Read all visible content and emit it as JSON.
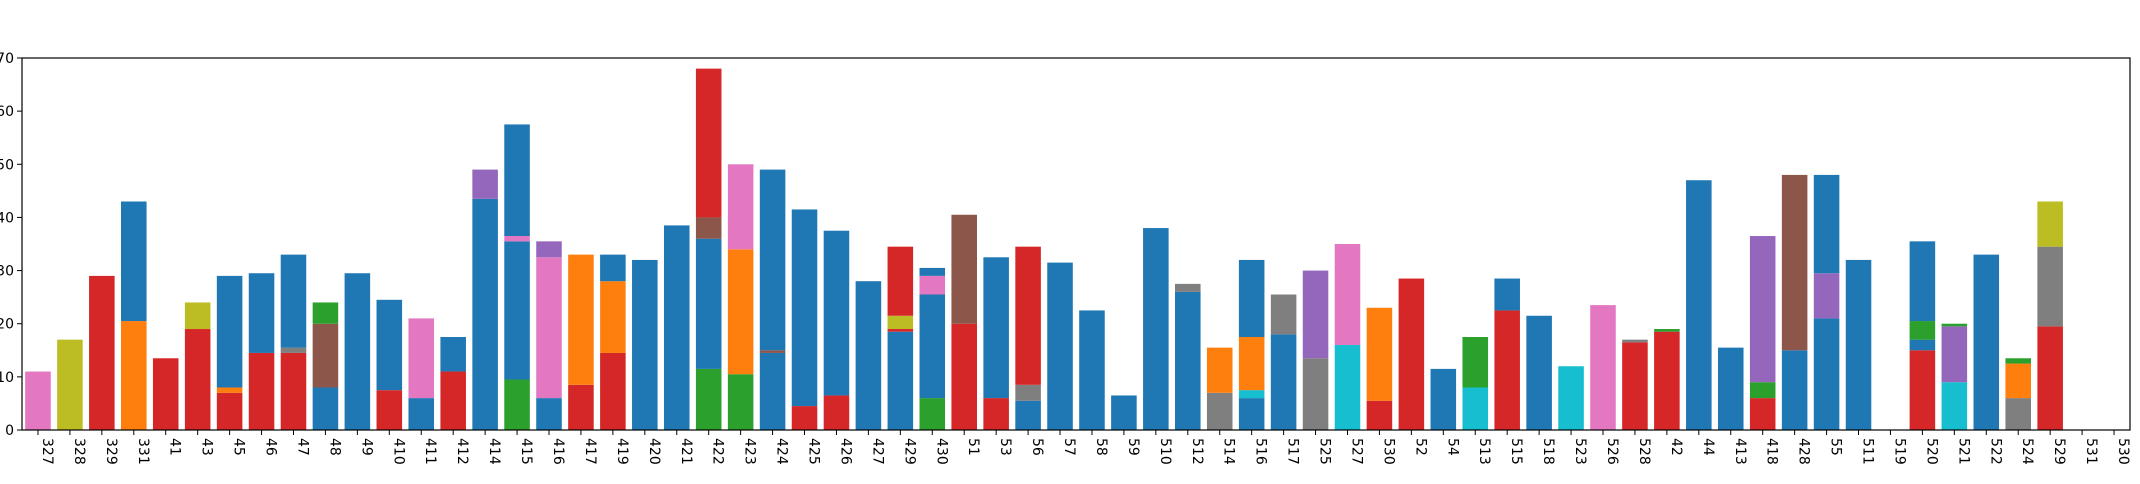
{
  "chart_data": {
    "type": "bar",
    "stacked": true,
    "title": "",
    "xlabel": "",
    "ylabel": "",
    "ylim": [
      0,
      70
    ],
    "ytick_values": [
      0,
      10,
      20,
      30,
      40,
      50,
      60,
      70
    ],
    "ytick_labels": [
      "0",
      "10",
      "20",
      "30",
      "40",
      "50",
      "60",
      "70"
    ],
    "ytick_labels_note": "leading digits of y tick labels are cropped off in the screenshot; only the trailing 0 is visible",
    "grid": false,
    "legend": "none",
    "colors": [
      "#1f77b4",
      "#ff7f0e",
      "#2ca02c",
      "#d62728",
      "#9467bd",
      "#8c564b",
      "#e377c2",
      "#7f7f7f",
      "#bcbd22",
      "#17becf"
    ],
    "categories": [
      "327",
      "328",
      "329",
      "331",
      "41",
      "43",
      "45",
      "46",
      "47",
      "48",
      "49",
      "410",
      "411",
      "412",
      "414",
      "415",
      "416",
      "417",
      "419",
      "420",
      "421",
      "422",
      "423",
      "424",
      "425",
      "426",
      "427",
      "429",
      "430",
      "51",
      "53",
      "56",
      "57",
      "58",
      "59",
      "510",
      "512",
      "514",
      "516",
      "517",
      "525",
      "527",
      "530",
      "52",
      "54",
      "513",
      "515",
      "518",
      "523",
      "526",
      "528",
      "42",
      "44",
      "413",
      "418",
      "428",
      "55",
      "511",
      "519",
      "520",
      "521",
      "522",
      "524",
      "529",
      "531",
      "530"
    ],
    "bars": [
      [
        [
          6,
          11
        ]
      ],
      [
        [
          8,
          17
        ]
      ],
      [
        [
          3,
          29
        ]
      ],
      [
        [
          1,
          20.5
        ],
        [
          0,
          22.5
        ]
      ],
      [
        [
          3,
          13.5
        ]
      ],
      [
        [
          3,
          19
        ],
        [
          8,
          5
        ]
      ],
      [
        [
          3,
          7
        ],
        [
          1,
          1
        ],
        [
          0,
          21
        ]
      ],
      [
        [
          3,
          14.5
        ],
        [
          0,
          15
        ]
      ],
      [
        [
          3,
          14.5
        ],
        [
          7,
          1
        ],
        [
          0,
          17.5
        ]
      ],
      [
        [
          0,
          8
        ],
        [
          5,
          12
        ],
        [
          2,
          4
        ]
      ],
      [
        [
          0,
          29.5
        ]
      ],
      [
        [
          3,
          7.5
        ],
        [
          0,
          17
        ]
      ],
      [
        [
          0,
          6
        ],
        [
          6,
          15
        ]
      ],
      [
        [
          3,
          11
        ],
        [
          0,
          6.5
        ]
      ],
      [
        [
          0,
          43.5
        ],
        [
          4,
          5.5
        ]
      ],
      [
        [
          2,
          9.5
        ],
        [
          0,
          26
        ],
        [
          6,
          1
        ],
        [
          0,
          21
        ]
      ],
      [
        [
          0,
          6
        ],
        [
          6,
          26.5
        ],
        [
          4,
          3
        ]
      ],
      [
        [
          3,
          8.5
        ],
        [
          1,
          24.5
        ]
      ],
      [
        [
          3,
          14.5
        ],
        [
          1,
          13.5
        ],
        [
          0,
          5
        ]
      ],
      [
        [
          0,
          32
        ]
      ],
      [
        [
          0,
          38.5
        ]
      ],
      [
        [
          2,
          11.5
        ],
        [
          0,
          24.5
        ],
        [
          5,
          4
        ],
        [
          3,
          28
        ]
      ],
      [
        [
          2,
          10.5
        ],
        [
          1,
          23.5
        ],
        [
          6,
          16
        ]
      ],
      [
        [
          0,
          14.5
        ],
        [
          5,
          0.5
        ],
        [
          0,
          34
        ]
      ],
      [
        [
          3,
          4.5
        ],
        [
          0,
          37
        ]
      ],
      [
        [
          3,
          6.5
        ],
        [
          0,
          31
        ]
      ],
      [
        [
          0,
          28
        ]
      ],
      [
        [
          0,
          18.5
        ],
        [
          3,
          0.5
        ],
        [
          8,
          2.5
        ],
        [
          3,
          13
        ]
      ],
      [
        [
          2,
          6
        ],
        [
          0,
          19.5
        ],
        [
          6,
          3.5
        ],
        [
          0,
          1.5
        ]
      ],
      [
        [
          3,
          20
        ],
        [
          5,
          20.5
        ]
      ],
      [
        [
          3,
          6
        ],
        [
          0,
          26.5
        ]
      ],
      [
        [
          0,
          5.5
        ],
        [
          7,
          3
        ],
        [
          3,
          26
        ]
      ],
      [
        [
          0,
          31.5
        ]
      ],
      [
        [
          0,
          22.5
        ]
      ],
      [
        [
          0,
          6.5
        ]
      ],
      [
        [
          0,
          38
        ]
      ],
      [
        [
          0,
          26
        ],
        [
          7,
          1.5
        ]
      ],
      [
        [
          7,
          7
        ],
        [
          1,
          8.5
        ]
      ],
      [
        [
          0,
          6
        ],
        [
          9,
          1.5
        ],
        [
          1,
          10
        ],
        [
          0,
          14.5
        ]
      ],
      [
        [
          0,
          18
        ],
        [
          7,
          7.5
        ]
      ],
      [
        [
          7,
          13.5
        ],
        [
          4,
          16.5
        ]
      ],
      [
        [
          9,
          16
        ],
        [
          6,
          19
        ]
      ],
      [
        [
          3,
          5.5
        ],
        [
          1,
          17.5
        ]
      ],
      [
        [
          3,
          28.5
        ]
      ],
      [
        [
          0,
          11.5
        ]
      ],
      [
        [
          9,
          8
        ],
        [
          2,
          9.5
        ]
      ],
      [
        [
          3,
          22.5
        ],
        [
          0,
          6
        ]
      ],
      [
        [
          0,
          21.5
        ]
      ],
      [
        [
          9,
          12
        ]
      ],
      [
        [
          6,
          23.5
        ]
      ],
      [
        [
          3,
          16.5
        ],
        [
          7,
          0.5
        ]
      ],
      [
        [
          3,
          18.5
        ],
        [
          2,
          0.5
        ]
      ],
      [
        [
          0,
          47
        ]
      ],
      [
        [
          0,
          15.5
        ]
      ],
      [
        [
          3,
          6
        ],
        [
          2,
          3
        ],
        [
          4,
          27.5
        ]
      ],
      [
        [
          0,
          15
        ],
        [
          5,
          33
        ]
      ],
      [
        [
          0,
          21
        ],
        [
          4,
          8.5
        ],
        [
          0,
          18.5
        ]
      ],
      [
        [
          0,
          32
        ]
      ],
      [],
      [
        [
          3,
          15
        ],
        [
          0,
          2
        ],
        [
          2,
          3.5
        ],
        [
          0,
          15
        ]
      ],
      [
        [
          9,
          9
        ],
        [
          4,
          10.5
        ],
        [
          2,
          0.5
        ]
      ],
      [
        [
          0,
          33
        ]
      ],
      [
        [
          7,
          6
        ],
        [
          1,
          6.5
        ],
        [
          2,
          1
        ]
      ],
      [
        [
          3,
          19.5
        ],
        [
          7,
          15
        ],
        [
          8,
          8.5
        ]
      ],
      [],
      []
    ]
  }
}
